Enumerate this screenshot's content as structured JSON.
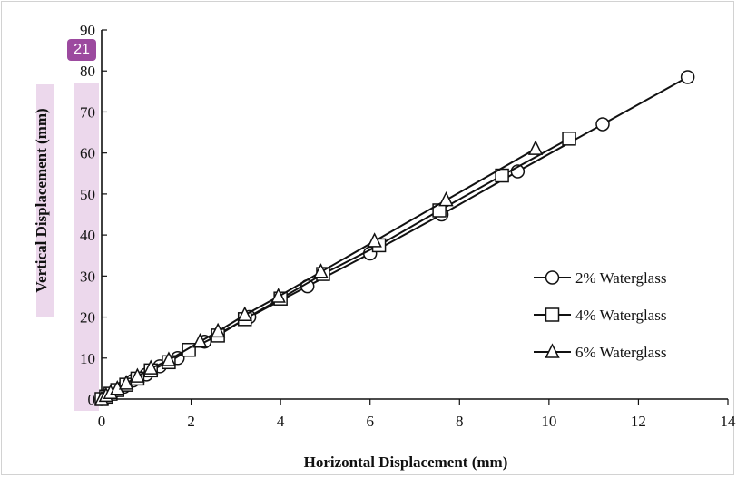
{
  "chart_data": {
    "type": "line",
    "xlabel": "Horizontal Displacement (mm)",
    "ylabel": "Vertical Displacement (mm)",
    "xlim": [
      0,
      14
    ],
    "ylim": [
      0,
      90
    ],
    "x_ticks": [
      0,
      2,
      4,
      6,
      8,
      10,
      12,
      14
    ],
    "y_ticks": [
      0,
      10,
      20,
      30,
      40,
      50,
      60,
      70,
      80,
      90
    ],
    "grid": false,
    "legend_position": "right",
    "series": [
      {
        "name": "2% Waterglass",
        "marker": "circle",
        "points": [
          [
            0,
            0
          ],
          [
            0.1,
            0.5
          ],
          [
            0.2,
            1.2
          ],
          [
            0.3,
            2
          ],
          [
            0.5,
            3
          ],
          [
            0.7,
            4.5
          ],
          [
            1.0,
            6
          ],
          [
            1.3,
            8
          ],
          [
            1.7,
            10
          ],
          [
            2.3,
            14
          ],
          [
            3.3,
            20
          ],
          [
            4.6,
            27.5
          ],
          [
            6.0,
            35.5
          ],
          [
            7.6,
            45
          ],
          [
            9.3,
            55.5
          ],
          [
            11.2,
            67
          ],
          [
            13.1,
            78.5
          ]
        ]
      },
      {
        "name": "4% Waterglass",
        "marker": "square",
        "points": [
          [
            0,
            0
          ],
          [
            0.1,
            0.6
          ],
          [
            0.2,
            1.3
          ],
          [
            0.35,
            2.2
          ],
          [
            0.55,
            3.5
          ],
          [
            0.8,
            5
          ],
          [
            1.1,
            7
          ],
          [
            1.5,
            9
          ],
          [
            1.95,
            12
          ],
          [
            2.6,
            15.5
          ],
          [
            3.2,
            19.5
          ],
          [
            4.0,
            24.5
          ],
          [
            4.95,
            30.5
          ],
          [
            6.2,
            37.5
          ],
          [
            7.55,
            46
          ],
          [
            8.95,
            54.5
          ],
          [
            10.45,
            63.5
          ]
        ]
      },
      {
        "name": "6% Waterglass",
        "marker": "triangle",
        "points": [
          [
            0,
            0
          ],
          [
            0.1,
            0.8
          ],
          [
            0.2,
            1.5
          ],
          [
            0.35,
            2.5
          ],
          [
            0.55,
            3.8
          ],
          [
            0.8,
            5.5
          ],
          [
            1.1,
            7.5
          ],
          [
            1.5,
            9.5
          ],
          [
            2.2,
            14
          ],
          [
            2.6,
            16.5
          ],
          [
            3.2,
            20.5
          ],
          [
            3.95,
            25
          ],
          [
            4.9,
            31
          ],
          [
            6.1,
            38.5
          ],
          [
            7.7,
            48.5
          ],
          [
            9.7,
            61
          ]
        ]
      }
    ]
  },
  "overlay": {
    "badge": "21"
  }
}
